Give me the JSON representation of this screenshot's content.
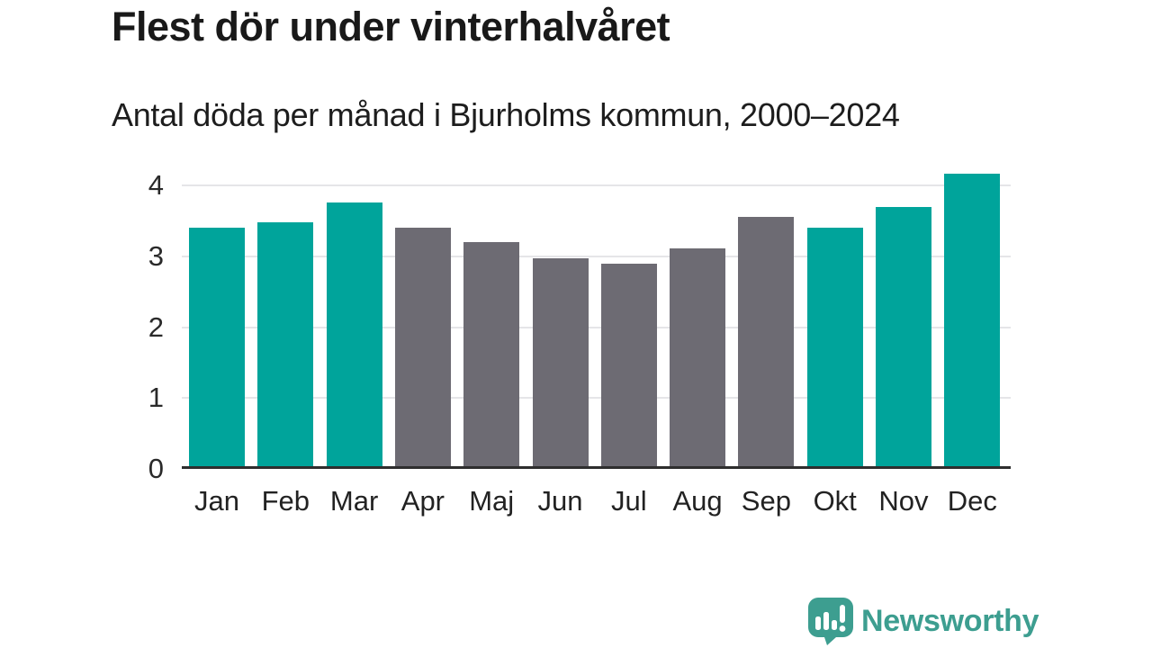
{
  "header": {
    "title": "Flest dör under vinterhalvåret",
    "subtitle": "Antal döda per månad i Bjurholms kommun, 2000–2024"
  },
  "chart_data": {
    "type": "bar",
    "title": "Flest dör under vinterhalvåret",
    "subtitle": "Antal döda per månad i Bjurholms kommun, 2000–2024",
    "categories": [
      "Jan",
      "Feb",
      "Mar",
      "Apr",
      "Maj",
      "Jun",
      "Jul",
      "Aug",
      "Sep",
      "Okt",
      "Nov",
      "Dec"
    ],
    "values": [
      3.4,
      3.48,
      3.76,
      3.4,
      3.2,
      2.97,
      2.89,
      3.11,
      3.56,
      3.4,
      3.69,
      4.16
    ],
    "bar_color_keys": [
      "teal",
      "teal",
      "teal",
      "gray",
      "gray",
      "gray",
      "gray",
      "gray",
      "gray",
      "teal",
      "teal",
      "teal"
    ],
    "colors": {
      "teal": "#00a49b",
      "gray": "#6d6b73"
    },
    "xlabel": "",
    "ylabel": "",
    "y_ticks": [
      0,
      1,
      2,
      3,
      4
    ],
    "ylim": [
      0,
      4.3
    ],
    "grid": true,
    "legend": "none",
    "gridline_color": "#e5e5e8",
    "axis_line_color": "#2e2e2e"
  },
  "footer": {
    "brand": "Newsworthy",
    "brand_color": "#3d9e90",
    "logo_icon": "newsworthy-bar-chart-bubble-icon"
  }
}
